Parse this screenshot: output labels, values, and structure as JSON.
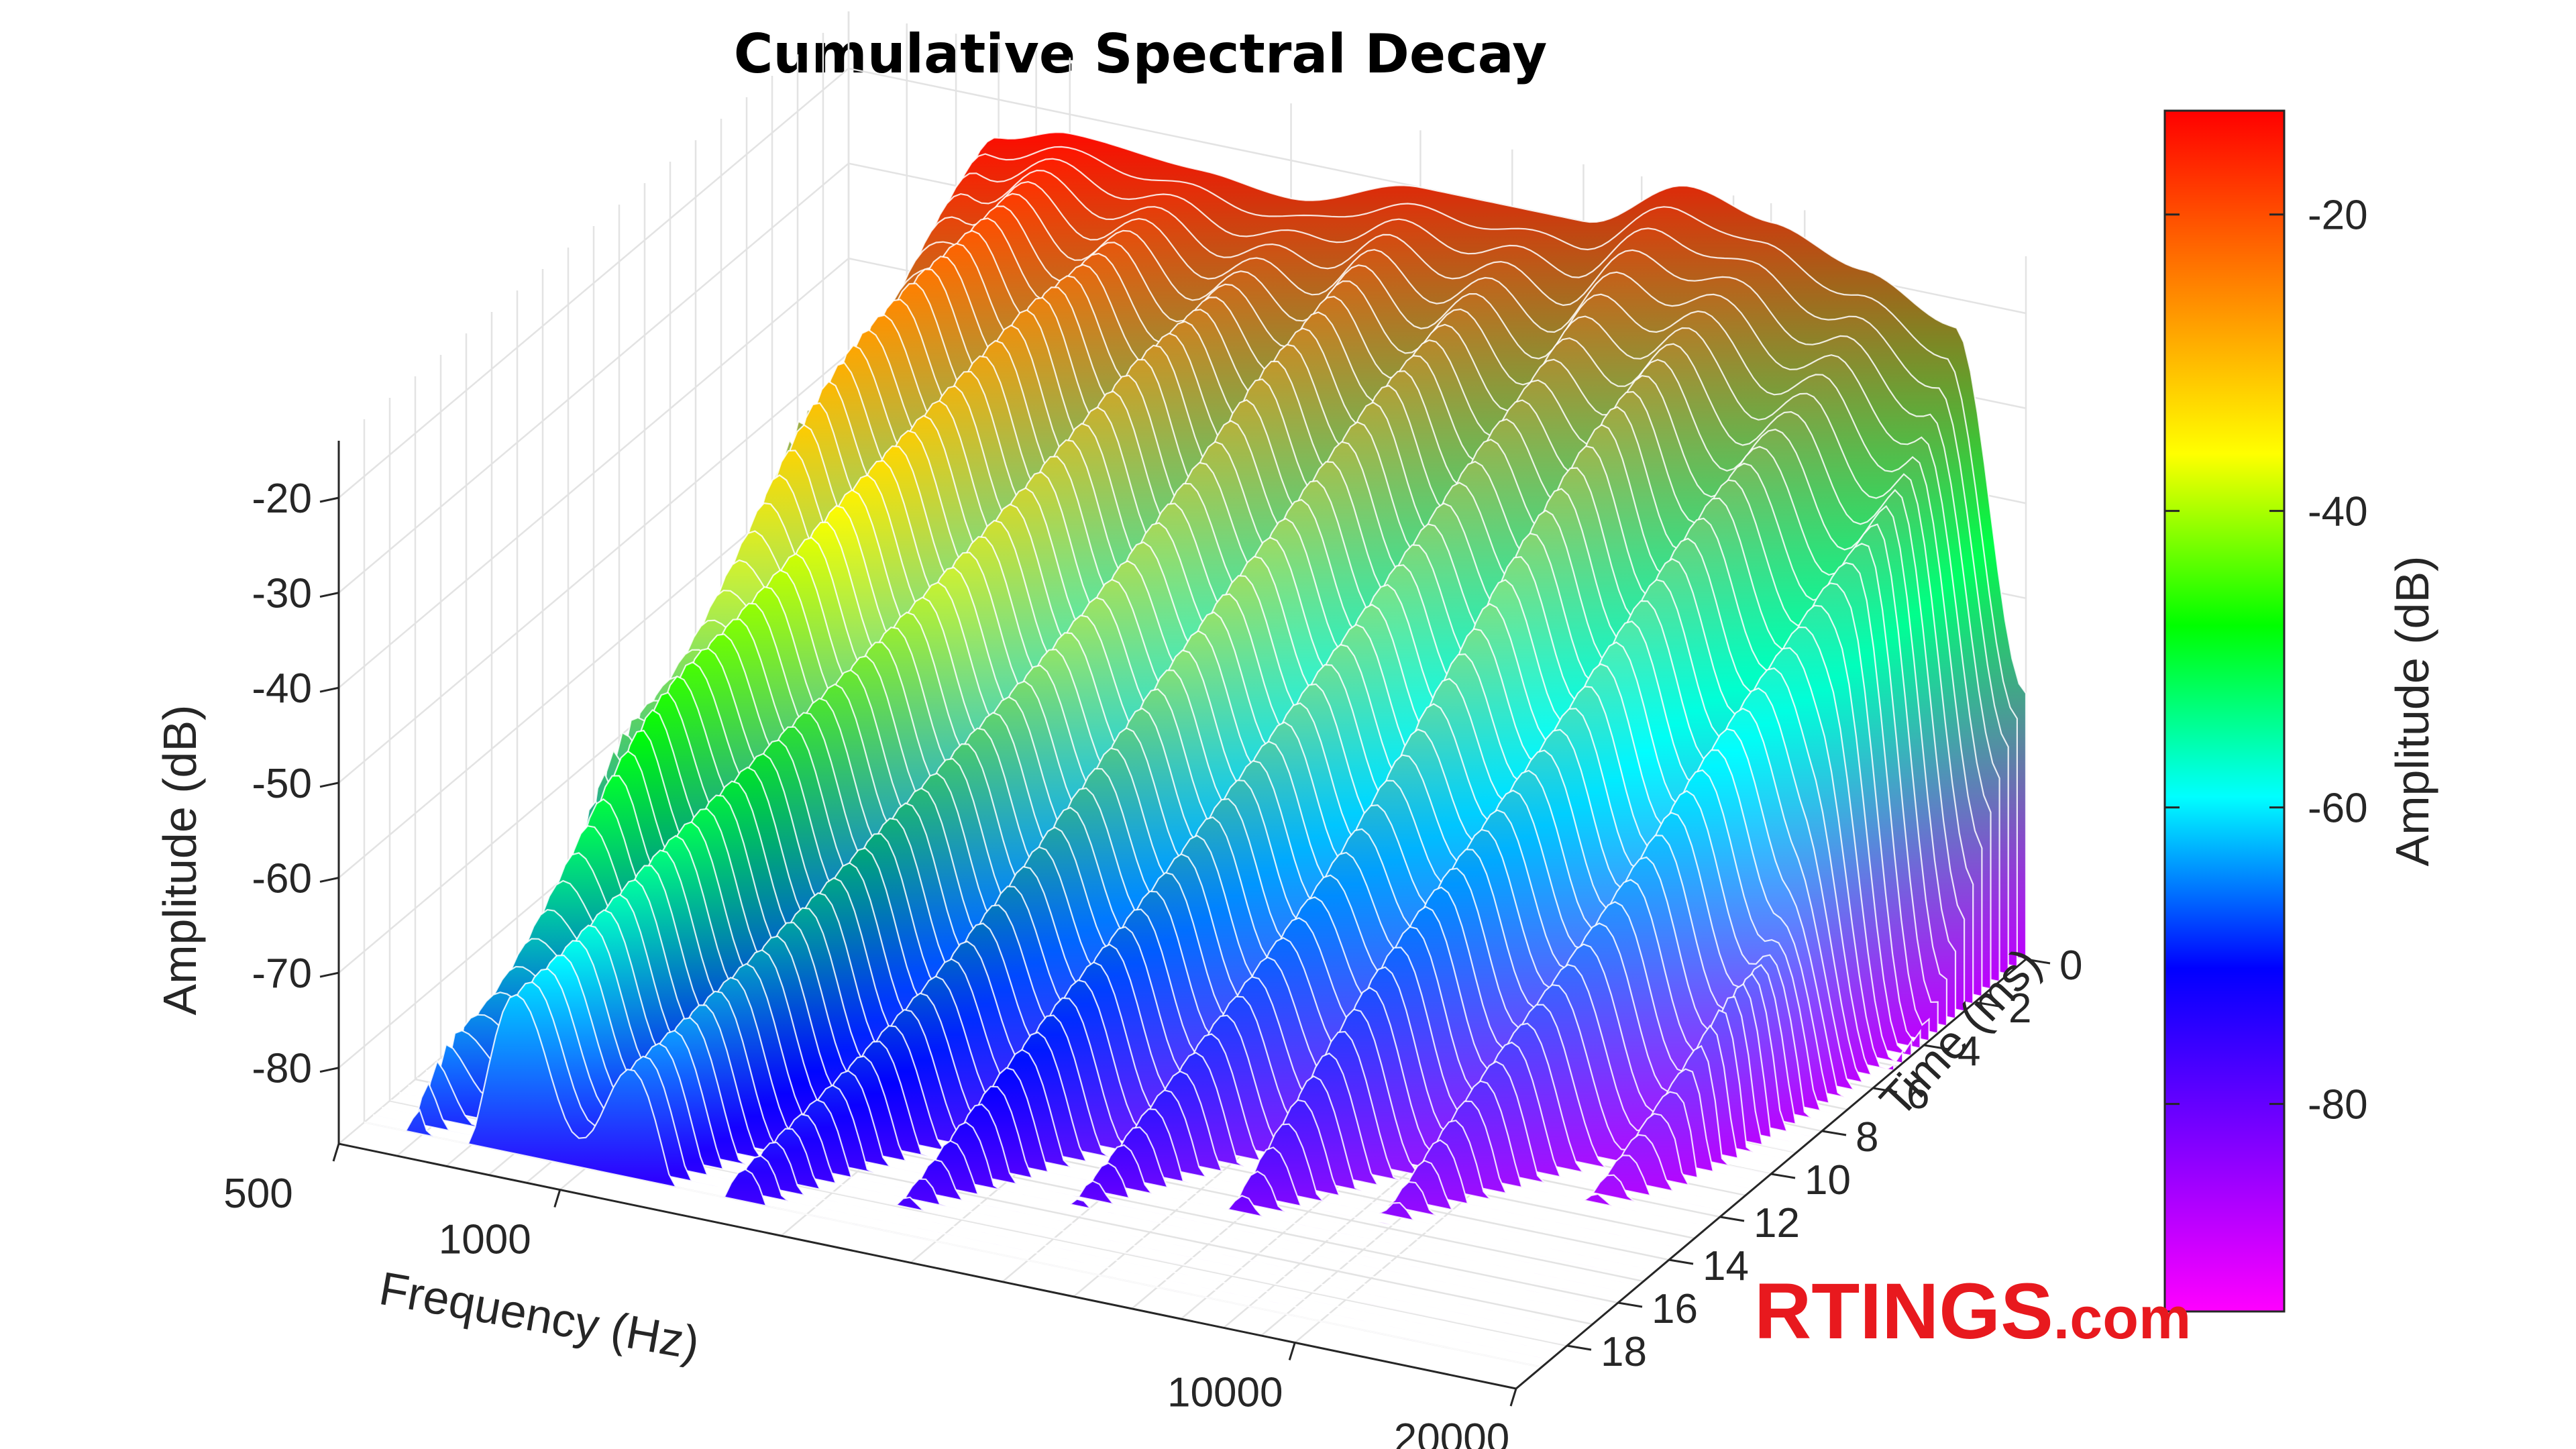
{
  "chart_data": {
    "type": "surface",
    "title": "Cumulative Spectral Decay",
    "x_axis": {
      "label": "Frequency (Hz)",
      "scale": "log",
      "range": [
        500,
        20000
      ],
      "ticks": [
        500,
        1000,
        10000,
        20000
      ],
      "tick_labels": [
        "500",
        "1000",
        "10000",
        "20000"
      ]
    },
    "y_axis": {
      "label": "Time (ms)",
      "range": [
        0,
        20
      ],
      "ticks": [
        0,
        2,
        4,
        6,
        8,
        10,
        12,
        14,
        16,
        18
      ],
      "tick_labels": [
        "0",
        "2",
        "4",
        "6",
        "8",
        "10",
        "12",
        "14",
        "16",
        "18"
      ]
    },
    "z_axis": {
      "label": "Amplitude (dB)",
      "range": [
        -88,
        -14
      ],
      "ticks": [
        -80,
        -70,
        -60,
        -50,
        -40,
        -30,
        -20
      ],
      "tick_labels": [
        "-80",
        "-70",
        "-60",
        "-50",
        "-40",
        "-30",
        "-20"
      ]
    },
    "colorbar": {
      "label": "Amplitude (dB)",
      "range": [
        -94,
        -13
      ],
      "ticks": [
        -80,
        -60,
        -40,
        -20
      ],
      "tick_labels": [
        "-80",
        "-60",
        "-40",
        "-20"
      ],
      "colormap": [
        "#ff00ff",
        "#7f00ff",
        "#0000ff",
        "#00ffff",
        "#00ff00",
        "#ffff00",
        "#ff8000",
        "#ff0000"
      ]
    },
    "initial_response_db": [
      {
        "frequency": 500,
        "amplitude": -88
      },
      {
        "frequency": 600,
        "amplitude": -42
      },
      {
        "frequency": 800,
        "amplitude": -24
      },
      {
        "frequency": 1000,
        "amplitude": -22
      },
      {
        "frequency": 1500,
        "amplitude": -23
      },
      {
        "frequency": 2000,
        "amplitude": -24
      },
      {
        "frequency": 3000,
        "amplitude": -20
      },
      {
        "frequency": 5000,
        "amplitude": -20
      },
      {
        "frequency": 7000,
        "amplitude": -14
      },
      {
        "frequency": 9000,
        "amplitude": -16
      },
      {
        "frequency": 12000,
        "amplitude": -19
      },
      {
        "frequency": 16000,
        "amplitude": -23
      },
      {
        "frequency": 20000,
        "amplitude": -60
      }
    ],
    "decay_rate_db_per_ms": 4.2,
    "floor_db": -88
  },
  "watermark": {
    "brand": "RTINGS",
    "suffix": ".com",
    "color": "#e8191e"
  }
}
